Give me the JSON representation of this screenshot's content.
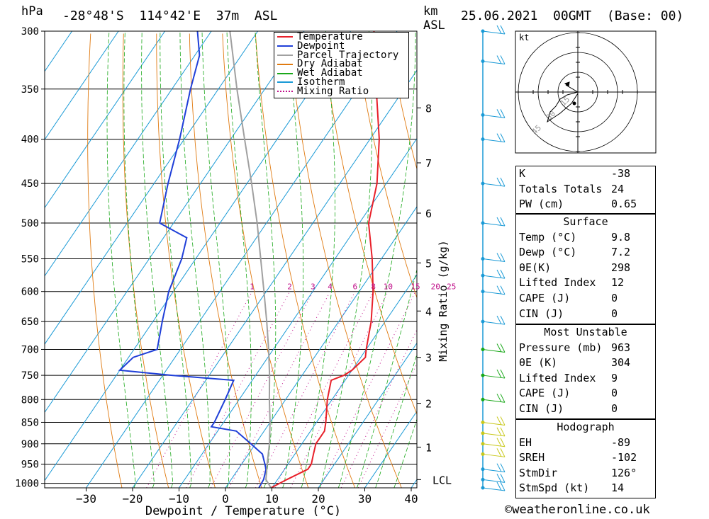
{
  "header": {
    "hpa_label": "hPa",
    "location": "-28°48'S  114°42'E  37m  ASL",
    "km_label": "km",
    "asl_label": "ASL",
    "datetime": "25.06.2021  00GMT  (Base: 00)"
  },
  "legend": [
    {
      "label": "Temperature",
      "color": "#e8202a",
      "style": "solid"
    },
    {
      "label": "Dewpoint",
      "color": "#1f3fd8",
      "style": "solid"
    },
    {
      "label": "Parcel Trajectory",
      "color": "#a0a0a0",
      "style": "solid"
    },
    {
      "label": "Dry Adiabat",
      "color": "#e07a10",
      "style": "solid"
    },
    {
      "label": "Wet Adiabat",
      "color": "#1aa81a",
      "style": "solid"
    },
    {
      "label": "Isotherm",
      "color": "#1a9ad6",
      "style": "solid"
    },
    {
      "label": "Mixing Ratio",
      "color": "#c0108a",
      "style": "dotted"
    }
  ],
  "chart_data": {
    "type": "line",
    "title": "-28°48'S  114°42'E  37m  ASL",
    "xlabel": "Dewpoint / Temperature (°C)",
    "ylabel": "hPa",
    "xlim": [
      -40,
      40
    ],
    "x_ticks": [
      "-30",
      "-20",
      "-10",
      "0",
      "10",
      "20",
      "30",
      "40"
    ],
    "y_ticks": [
      "300",
      "350",
      "400",
      "450",
      "500",
      "550",
      "600",
      "650",
      "700",
      "750",
      "800",
      "850",
      "900",
      "950",
      "1000"
    ],
    "km_ticks": [
      {
        "label": "8",
        "p": 368
      },
      {
        "label": "7",
        "p": 426
      },
      {
        "label": "6",
        "p": 487
      },
      {
        "label": "5",
        "p": 556
      },
      {
        "label": "4",
        "p": 632
      },
      {
        "label": "3",
        "p": 715
      },
      {
        "label": "2",
        "p": 808
      },
      {
        "label": "1",
        "p": 908
      },
      {
        "label": "LCL",
        "p": 990
      }
    ],
    "mixing_ratio_label": "Mixing Ratio (g/kg)",
    "mixing_ratio_values": [
      "1",
      "2",
      "3",
      "4",
      "6",
      "8",
      "10",
      "15",
      "20",
      "25"
    ],
    "series": [
      {
        "name": "Temperature",
        "color": "#e8202a",
        "points": [
          [
            1012,
            9.8
          ],
          [
            990,
            12
          ],
          [
            963,
            15
          ],
          [
            950,
            15
          ],
          [
            925,
            14
          ],
          [
            900,
            13
          ],
          [
            870,
            13
          ],
          [
            850,
            12
          ],
          [
            800,
            9
          ],
          [
            760,
            7
          ],
          [
            750,
            9
          ],
          [
            740,
            10
          ],
          [
            715,
            11
          ],
          [
            700,
            10
          ],
          [
            650,
            7
          ],
          [
            600,
            3
          ],
          [
            550,
            -2
          ],
          [
            500,
            -8
          ],
          [
            450,
            -12
          ],
          [
            400,
            -18
          ],
          [
            350,
            -26
          ],
          [
            320,
            -31
          ],
          [
            300,
            -35
          ]
        ]
      },
      {
        "name": "Dewpoint",
        "color": "#1f3fd8",
        "points": [
          [
            1012,
            7.2
          ],
          [
            990,
            7
          ],
          [
            963,
            6
          ],
          [
            950,
            5
          ],
          [
            925,
            3
          ],
          [
            900,
            -1
          ],
          [
            870,
            -6
          ],
          [
            860,
            -12
          ],
          [
            850,
            -12
          ],
          [
            800,
            -13
          ],
          [
            760,
            -14
          ],
          [
            750,
            -28
          ],
          [
            740,
            -40
          ],
          [
            715,
            -39
          ],
          [
            700,
            -35
          ],
          [
            650,
            -38
          ],
          [
            600,
            -41
          ],
          [
            550,
            -43
          ],
          [
            520,
            -45
          ],
          [
            500,
            -53
          ],
          [
            450,
            -57
          ],
          [
            400,
            -61
          ],
          [
            350,
            -66
          ],
          [
            320,
            -69
          ],
          [
            300,
            -73
          ]
        ]
      },
      {
        "name": "Parcel Trajectory",
        "color": "#a0a0a0",
        "points": [
          [
            1012,
            9.8
          ],
          [
            990,
            7.5
          ],
          [
            950,
            5.5
          ],
          [
            900,
            3
          ],
          [
            850,
            0
          ],
          [
            800,
            -3.5
          ],
          [
            750,
            -7
          ],
          [
            700,
            -11
          ],
          [
            650,
            -15.5
          ],
          [
            600,
            -20.5
          ],
          [
            550,
            -26
          ],
          [
            500,
            -32
          ],
          [
            450,
            -39
          ],
          [
            400,
            -47
          ],
          [
            350,
            -56
          ],
          [
            300,
            -66
          ]
        ]
      }
    ]
  },
  "hodograph": {
    "unit": "kt",
    "ring_labels": [
      "15",
      "30",
      "45"
    ]
  },
  "indices": [
    {
      "label": "K",
      "value": "-38"
    },
    {
      "label": "Totals Totals",
      "value": "24"
    },
    {
      "label": "PW (cm)",
      "value": "0.65"
    }
  ],
  "surface": {
    "title": "Surface",
    "rows": [
      {
        "label": "Temp (°C)",
        "value": "9.8"
      },
      {
        "label": "Dewp (°C)",
        "value": "7.2"
      },
      {
        "label": "θE(K)",
        "value": "298"
      },
      {
        "label": "Lifted Index",
        "value": "12"
      },
      {
        "label": "CAPE (J)",
        "value": "0"
      },
      {
        "label": "CIN (J)",
        "value": "0"
      }
    ]
  },
  "most_unstable": {
    "title": "Most Unstable",
    "rows": [
      {
        "label": "Pressure (mb)",
        "value": "963"
      },
      {
        "label": "θE (K)",
        "value": "304"
      },
      {
        "label": "Lifted Index",
        "value": "9"
      },
      {
        "label": "CAPE (J)",
        "value": "0"
      },
      {
        "label": "CIN (J)",
        "value": "0"
      }
    ]
  },
  "hodograph_stats": {
    "title": "Hodograph",
    "rows": [
      {
        "label": "EH",
        "value": "-89"
      },
      {
        "label": "SREH",
        "value": "-102"
      },
      {
        "label": "StmDir",
        "value": "126°"
      },
      {
        "label": "StmSpd (kt)",
        "value": "14"
      }
    ]
  },
  "copyright": "©weatheronline.co.uk"
}
